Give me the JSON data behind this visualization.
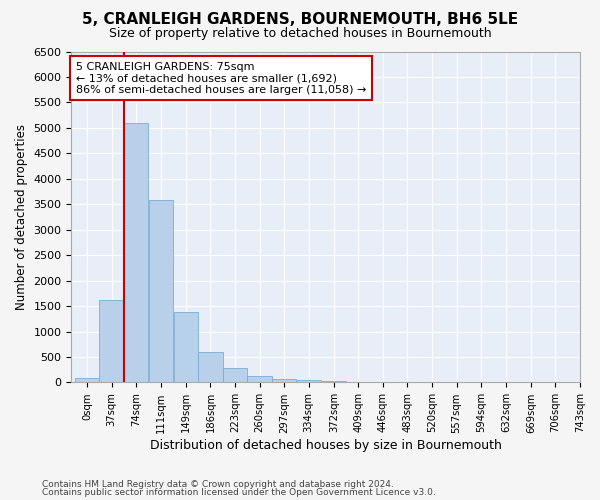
{
  "title": "5, CRANLEIGH GARDENS, BOURNEMOUTH, BH6 5LE",
  "subtitle": "Size of property relative to detached houses in Bournemouth",
  "xlabel": "Distribution of detached houses by size in Bournemouth",
  "ylabel": "Number of detached properties",
  "bins": [
    "0sqm",
    "37sqm",
    "74sqm",
    "111sqm",
    "149sqm",
    "186sqm",
    "223sqm",
    "260sqm",
    "297sqm",
    "334sqm",
    "372sqm",
    "409sqm",
    "446sqm",
    "483sqm",
    "520sqm",
    "557sqm",
    "594sqm",
    "632sqm",
    "669sqm",
    "706sqm",
    "743sqm"
  ],
  "bin_edges": [
    0,
    37,
    74,
    111,
    149,
    186,
    223,
    260,
    297,
    334,
    372,
    409,
    446,
    483,
    520,
    557,
    594,
    632,
    669,
    706,
    743
  ],
  "bar_heights": [
    80,
    1620,
    5100,
    3580,
    1380,
    590,
    275,
    130,
    75,
    45,
    25,
    12,
    8,
    5,
    3,
    2,
    1,
    1,
    1,
    1
  ],
  "bar_color": "#b8d0ea",
  "bar_edge_color": "#7aadd4",
  "property_line_x": 74,
  "property_line_color": "#cc0000",
  "annotation_text": "5 CRANLEIGH GARDENS: 75sqm\n← 13% of detached houses are smaller (1,692)\n86% of semi-detached houses are larger (11,058) →",
  "annotation_box_color": "#cc0000",
  "ylim": [
    0,
    6500
  ],
  "yticks": [
    0,
    500,
    1000,
    1500,
    2000,
    2500,
    3000,
    3500,
    4000,
    4500,
    5000,
    5500,
    6000,
    6500
  ],
  "plot_bg_color": "#e8eef8",
  "fig_bg_color": "#f5f5f5",
  "grid_color": "#ffffff",
  "footer_line1": "Contains HM Land Registry data © Crown copyright and database right 2024.",
  "footer_line2": "Contains public sector information licensed under the Open Government Licence v3.0."
}
